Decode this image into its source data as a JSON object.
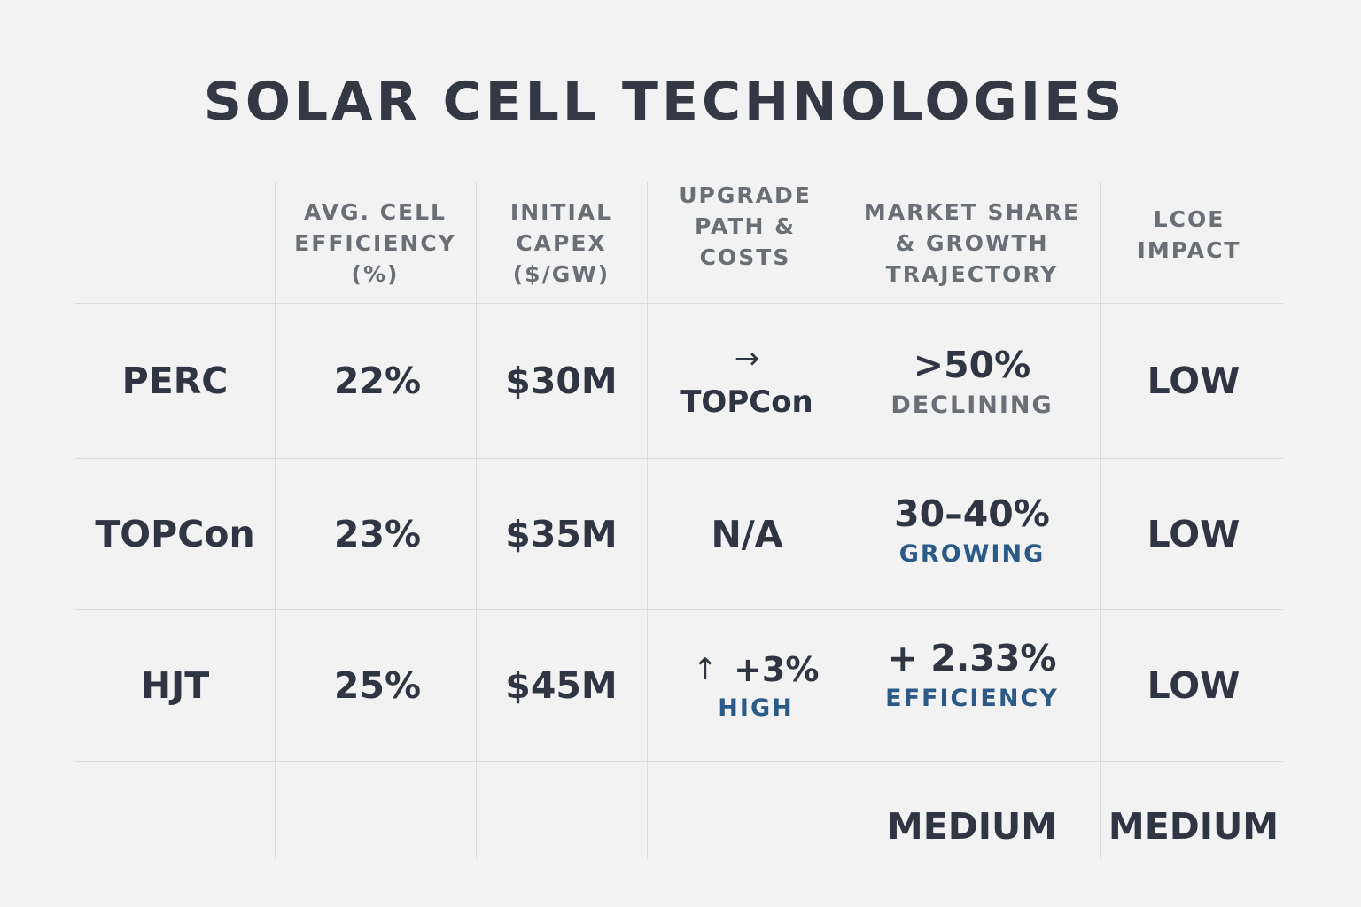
{
  "title": "SOLAR CELL TECHNOLOGIES",
  "colors": {
    "background": "#f2f2f2",
    "text_dark": "#2f3542",
    "text_grey": "#6a6f76",
    "accent_blue": "#2a5a85",
    "grid": "#d9dde2"
  },
  "columns": {
    "efficiency": [
      "AVG. CELL",
      "EFFICIENCY",
      "(%)"
    ],
    "capex": [
      "INITIAL",
      "CAPEX",
      "($/GW)"
    ],
    "upgrade": [
      "UPGRADE",
      "PATH & COSTS"
    ],
    "market": [
      "MARKET SHARE",
      "& GROWTH",
      "TRAJECTORY"
    ],
    "lcoe": [
      "LCOE",
      "IMPACT"
    ]
  },
  "rows": [
    {
      "label": "PERC",
      "efficiency": "22%",
      "capex": "$30M",
      "upgrade_arrow": "→",
      "upgrade_main": "TOPCon",
      "market_value": ">50%",
      "market_trend": "DECLINING",
      "lcoe": "LOW"
    },
    {
      "label": "TOPCon",
      "efficiency": "23%",
      "capex": "$35M",
      "upgrade_main": "N/A",
      "market_value": "30–40%",
      "market_trend": "GROWING",
      "lcoe": "LOW"
    },
    {
      "label": "HJT",
      "efficiency": "25%",
      "capex": "$45M",
      "upgrade_arrow": "↑",
      "upgrade_main": "+3%",
      "upgrade_sub": "HIGH",
      "market_value": "+ 2.33%",
      "market_trend": "EFFICIENCY",
      "lcoe": "LOW"
    }
  ],
  "footer_row": {
    "market": "MEDIUM",
    "lcoe": "MEDIUM"
  }
}
